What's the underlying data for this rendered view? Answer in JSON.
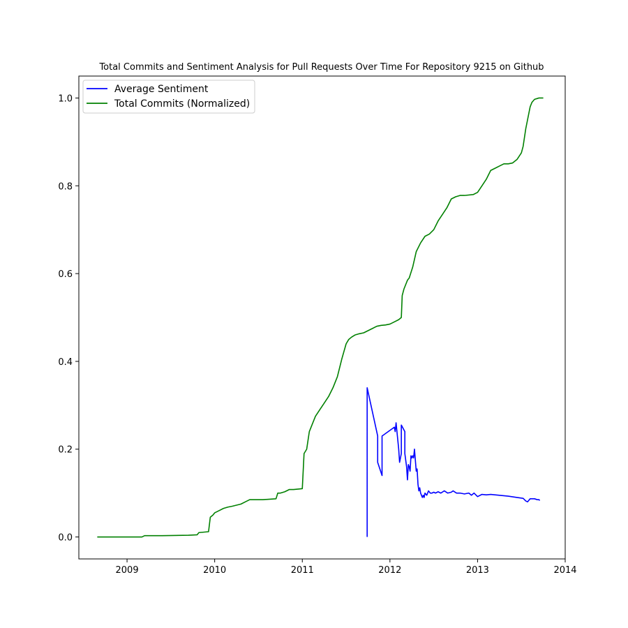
{
  "chart_data": {
    "type": "line",
    "title": "Total Commits and Sentiment Analysis for Pull Requests Over Time For Repository 9215 on Github",
    "xlabel": "",
    "ylabel": "",
    "xlim": [
      2008.45,
      2014.0
    ],
    "ylim": [
      -0.05,
      1.05
    ],
    "x_ticks": [
      2009,
      2010,
      2011,
      2012,
      2013,
      2014
    ],
    "y_ticks": [
      0.0,
      0.2,
      0.4,
      0.6,
      0.8,
      1.0
    ],
    "x_tick_labels": [
      "2009",
      "2010",
      "2011",
      "2012",
      "2013",
      "2014"
    ],
    "y_tick_labels": [
      "0.0",
      "0.2",
      "0.4",
      "0.6",
      "0.8",
      "1.0"
    ],
    "grid": false,
    "legend_position": "top-left",
    "series": [
      {
        "name": "Average Sentiment",
        "color": "#0000ff",
        "x": [
          2011.74,
          2011.74,
          2011.86,
          2011.86,
          2011.91,
          2011.91,
          2012.05,
          2012.06,
          2012.07,
          2012.08,
          2012.1,
          2012.11,
          2012.13,
          2012.13,
          2012.17,
          2012.17,
          2012.19,
          2012.2,
          2012.21,
          2012.22,
          2012.23,
          2012.24,
          2012.25,
          2012.26,
          2012.27,
          2012.28,
          2012.3,
          2012.31,
          2012.32,
          2012.33,
          2012.34,
          2012.35,
          2012.37,
          2012.38,
          2012.39,
          2012.4,
          2012.42,
          2012.44,
          2012.46,
          2012.48,
          2012.5,
          2012.52,
          2012.55,
          2012.58,
          2012.62,
          2012.66,
          2012.7,
          2012.72,
          2012.76,
          2012.8,
          2012.85,
          2012.9,
          2012.93,
          2012.96,
          2013.0,
          2013.05,
          2013.1,
          2013.15,
          2013.25,
          2013.35,
          2013.45,
          2013.52,
          2013.55,
          2013.57,
          2013.6,
          2013.65,
          2013.68,
          2013.7,
          2013.71
        ],
        "values": [
          0.0,
          0.34,
          0.23,
          0.17,
          0.14,
          0.23,
          0.25,
          0.24,
          0.26,
          0.24,
          0.2,
          0.17,
          0.19,
          0.255,
          0.24,
          0.19,
          0.16,
          0.13,
          0.165,
          0.16,
          0.15,
          0.185,
          0.18,
          0.185,
          0.18,
          0.2,
          0.15,
          0.155,
          0.12,
          0.105,
          0.112,
          0.1,
          0.09,
          0.095,
          0.09,
          0.1,
          0.095,
          0.105,
          0.1,
          0.1,
          0.102,
          0.1,
          0.103,
          0.1,
          0.105,
          0.1,
          0.102,
          0.105,
          0.1,
          0.1,
          0.098,
          0.1,
          0.095,
          0.1,
          0.092,
          0.097,
          0.096,
          0.097,
          0.095,
          0.093,
          0.09,
          0.088,
          0.082,
          0.08,
          0.087,
          0.087,
          0.085,
          0.085,
          0.083
        ]
      },
      {
        "name": "Total Commits (Normalized)",
        "color": "#008000",
        "x": [
          2008.66,
          2009.17,
          2009.2,
          2009.4,
          2009.7,
          2009.8,
          2009.82,
          2009.93,
          2009.95,
          2009.98,
          2010.0,
          2010.05,
          2010.1,
          2010.15,
          2010.2,
          2010.3,
          2010.35,
          2010.4,
          2010.45,
          2010.55,
          2010.7,
          2010.72,
          2010.75,
          2010.8,
          2010.85,
          2010.9,
          2011.0,
          2011.02,
          2011.05,
          2011.08,
          2011.12,
          2011.15,
          2011.2,
          2011.25,
          2011.3,
          2011.35,
          2011.4,
          2011.45,
          2011.5,
          2011.53,
          2011.56,
          2011.6,
          2011.65,
          2011.7,
          2011.75,
          2011.8,
          2011.85,
          2011.9,
          2011.95,
          2012.0,
          2012.05,
          2012.1,
          2012.13,
          2012.14,
          2012.16,
          2012.2,
          2012.22,
          2012.26,
          2012.3,
          2012.35,
          2012.4,
          2012.45,
          2012.5,
          2012.55,
          2012.6,
          2012.65,
          2012.7,
          2012.75,
          2012.8,
          2012.85,
          2012.95,
          2013.0,
          2013.05,
          2013.1,
          2013.15,
          2013.2,
          2013.25,
          2013.3,
          2013.35,
          2013.4,
          2013.45,
          2013.5,
          2013.52,
          2013.55,
          2013.58,
          2013.6,
          2013.62,
          2013.65,
          2013.7,
          2013.75
        ],
        "values": [
          0.0,
          0.0,
          0.003,
          0.003,
          0.004,
          0.005,
          0.01,
          0.012,
          0.045,
          0.05,
          0.055,
          0.06,
          0.065,
          0.068,
          0.07,
          0.075,
          0.08,
          0.085,
          0.085,
          0.085,
          0.087,
          0.1,
          0.1,
          0.103,
          0.108,
          0.108,
          0.11,
          0.19,
          0.2,
          0.24,
          0.26,
          0.275,
          0.29,
          0.305,
          0.32,
          0.34,
          0.365,
          0.405,
          0.44,
          0.45,
          0.455,
          0.46,
          0.463,
          0.465,
          0.47,
          0.475,
          0.48,
          0.482,
          0.483,
          0.485,
          0.49,
          0.495,
          0.5,
          0.55,
          0.565,
          0.585,
          0.59,
          0.615,
          0.65,
          0.67,
          0.685,
          0.69,
          0.7,
          0.72,
          0.735,
          0.75,
          0.77,
          0.775,
          0.778,
          0.778,
          0.78,
          0.785,
          0.8,
          0.815,
          0.835,
          0.84,
          0.845,
          0.85,
          0.85,
          0.852,
          0.86,
          0.875,
          0.89,
          0.93,
          0.96,
          0.98,
          0.99,
          0.997,
          1.0,
          1.0
        ]
      }
    ]
  }
}
